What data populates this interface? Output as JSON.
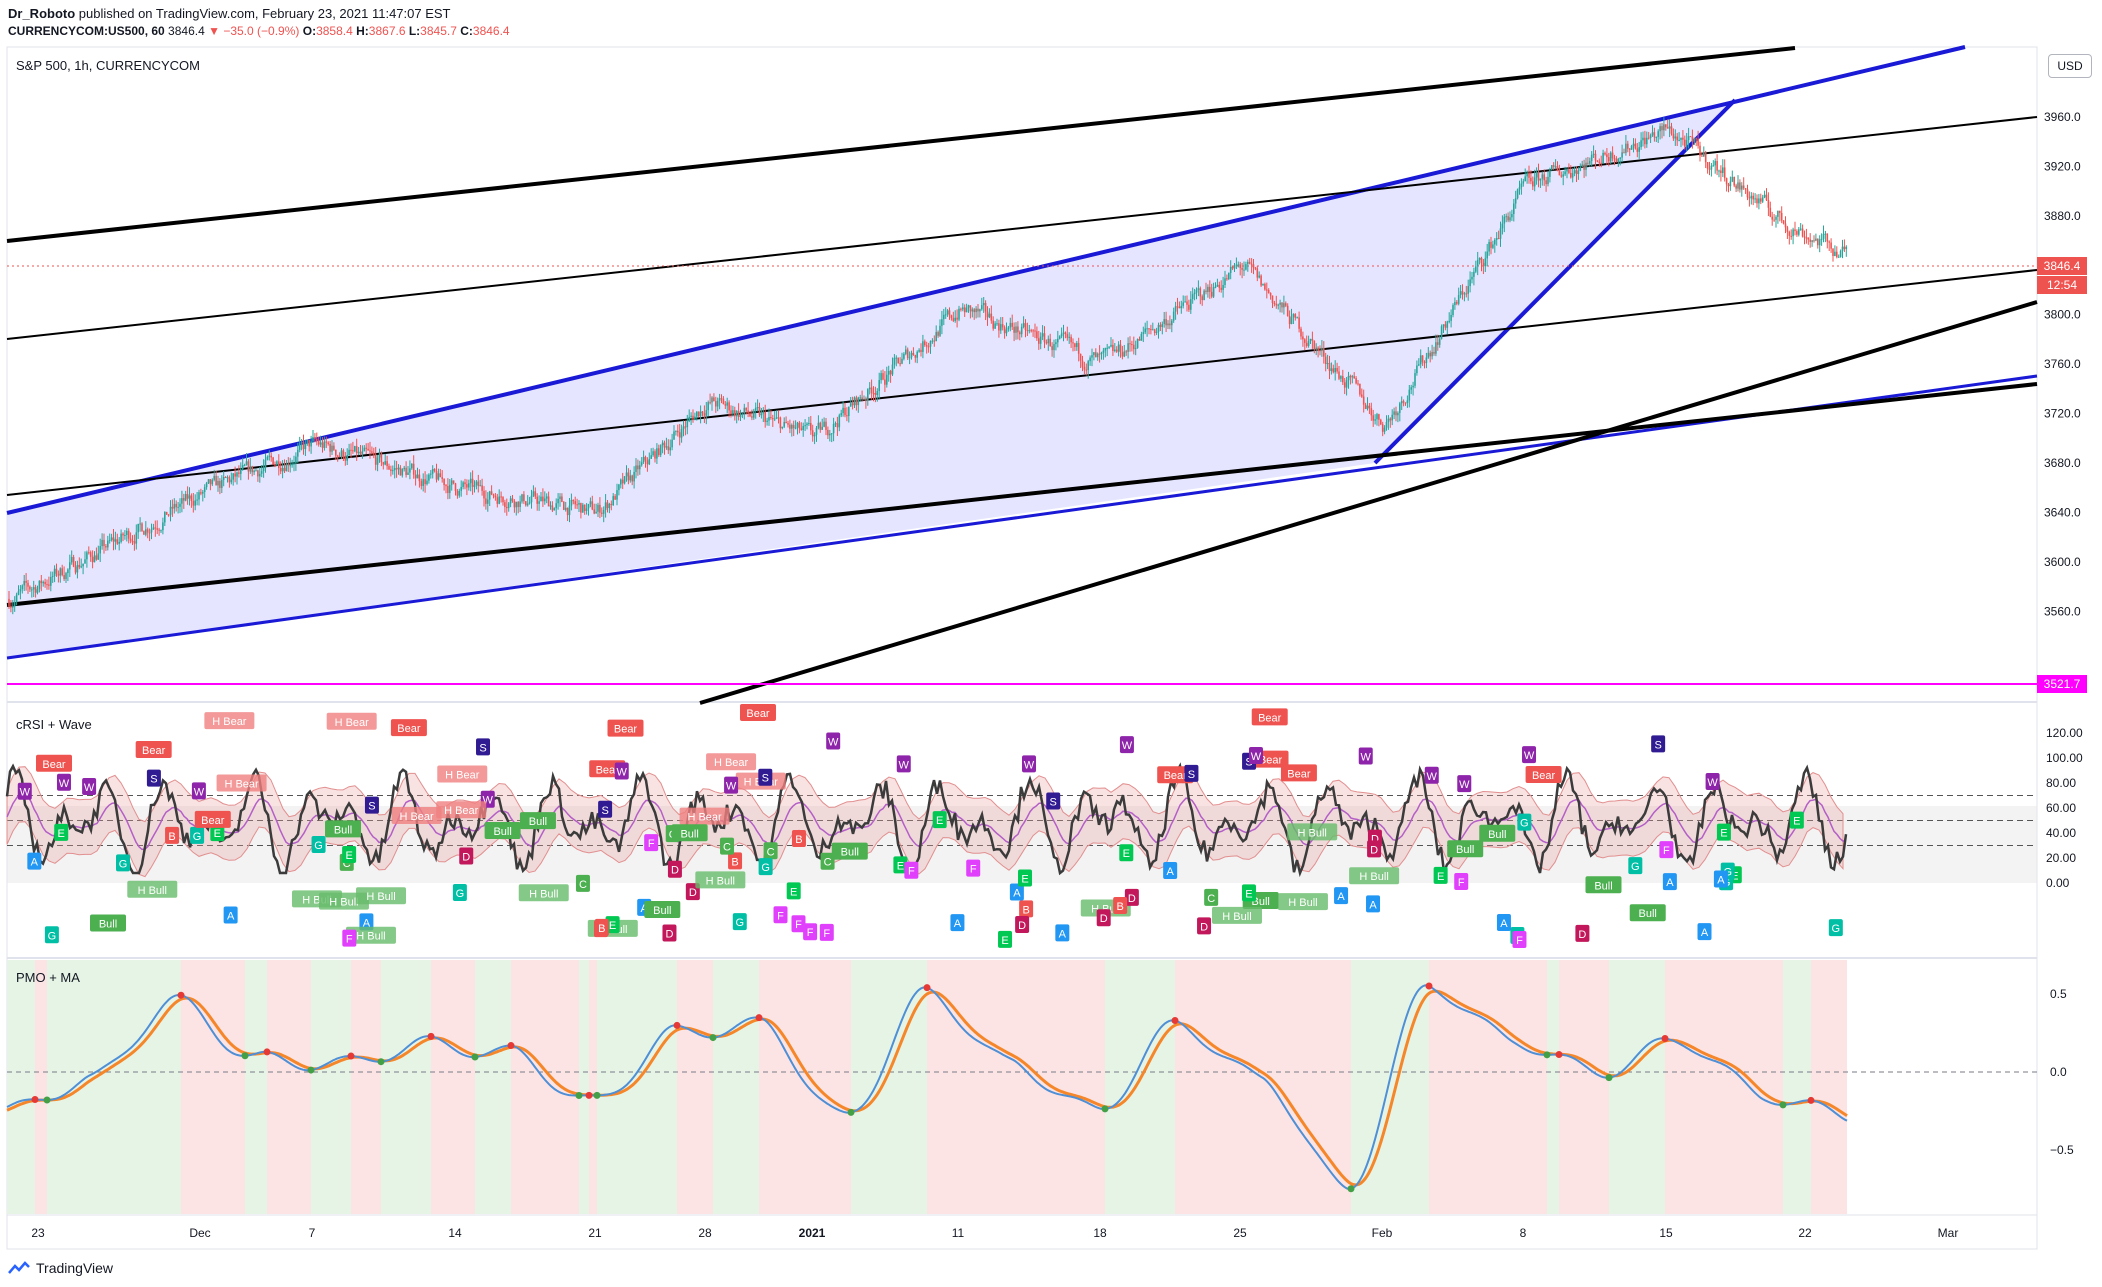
{
  "header": {
    "author": "Dr_Roboto",
    "published_text": "published on TradingView.com, February 23, 2021 11:47:07 EST",
    "symbol": "CURRENCYCOM:US500, 60",
    "last": "3846.4",
    "change": "−35.0 (−0.9%)",
    "o_label": "O:",
    "o_val": "3858.4",
    "h_label": "H:",
    "h_val": "3867.6",
    "l_label": "L:",
    "l_val": "3845.7",
    "c_label": "C:",
    "c_val": "3846.4"
  },
  "price_pane": {
    "title": "S&P 500, 1h, CURRENCYCOM",
    "currency_button": "USD",
    "last_price_tag": "3846.4",
    "countdown_tag": "12:54",
    "support_tag": "3521.7"
  },
  "crsi_pane": {
    "title": "cRSI + Wave"
  },
  "pmo_pane": {
    "title": "PMO + MA"
  },
  "footer": {
    "brand": "TradingView"
  },
  "colors": {
    "up": "#26a69a",
    "down": "#ef5350",
    "channel_fill": "#dcdcff",
    "channel_line": "#1a1ad6",
    "support_line": "#ff00ff",
    "bull_bg": "#e6f4e6",
    "bear_bg": "#fde4e4",
    "pmo": "#4e8fd6",
    "pmo_ma": "#f5872a",
    "crsi": "#3b3b3b",
    "crsi_ma": "#b45fc7"
  },
  "chart_data": [
    {
      "type": "candlestick",
      "title": "S&P 500, 1h, CURRENCYCOM",
      "x_ticks": [
        "23",
        "Dec",
        "7",
        "14",
        "21",
        "28",
        "2021",
        "11",
        "18",
        "25",
        "Feb",
        "8",
        "15",
        "22",
        "Mar"
      ],
      "y_ticks": [
        3560,
        3600,
        3640,
        3680,
        3720,
        3760,
        3800,
        3840,
        3880,
        3920,
        3960
      ],
      "y_tick_labels": [
        "3560.0",
        "3600.0",
        "3640.0",
        "3680.0",
        "3720.0",
        "3760.0",
        "3800.0",
        "3880.0",
        "3920.0",
        "3960.0"
      ],
      "ylim": [
        3510,
        4000
      ],
      "close_path": [
        [
          "23",
          3570
        ],
        [
          "Dec",
          3655
        ],
        [
          "7",
          3695
        ],
        [
          "14",
          3660
        ],
        [
          "21",
          3640
        ],
        [
          "28",
          3730
        ],
        [
          "2021",
          3700
        ],
        [
          "11",
          3805
        ],
        [
          "18",
          3760
        ],
        [
          "25",
          3840
        ],
        [
          "Feb",
          3710
        ],
        [
          "8",
          3905
        ],
        [
          "15",
          3950
        ],
        [
          "22",
          3875
        ],
        [
          "22",
          3846.4
        ]
      ],
      "last_price": 3846.4,
      "support_level": 3521.7
    },
    {
      "type": "line",
      "title": "cRSI + Wave",
      "y_ticks": [
        0,
        20,
        40,
        60,
        80,
        100,
        120
      ],
      "y_tick_labels": [
        "0.00",
        "20.00",
        "40.00",
        "60.00",
        "80.00",
        "100.00",
        "120.00"
      ],
      "dashed_levels": [
        30,
        50,
        70
      ],
      "ylim": [
        -8,
        128
      ],
      "signal_labels": [
        "Bear",
        "H Bear",
        "Bull",
        "H Bull",
        "A",
        "B",
        "C",
        "D",
        "E",
        "F",
        "G",
        "S",
        "W"
      ]
    },
    {
      "type": "line",
      "title": "PMO + MA",
      "y_ticks": [
        -0.5,
        0.0,
        0.5
      ],
      "y_tick_labels": [
        "−0.5",
        "0.0",
        "0.5"
      ],
      "ylim": [
        -0.93,
        0.66
      ],
      "series": [
        {
          "values": [
            -0.25,
            -0.05,
            0.45,
            0.08,
            0.05,
            0.18,
            0.12,
            -0.2,
            0.25,
            0.3,
            -0.3,
            0.5,
            0.05,
            -0.25,
            0.3,
            -0.05,
            -0.75,
            0.55,
            0.2,
            0.0,
            0.2,
            -0.15,
            -0.28
          ]
        }
      ]
    }
  ]
}
